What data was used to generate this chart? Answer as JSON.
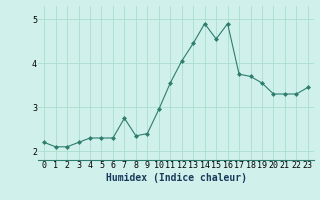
{
  "x": [
    0,
    1,
    2,
    3,
    4,
    5,
    6,
    7,
    8,
    9,
    10,
    11,
    12,
    13,
    14,
    15,
    16,
    17,
    18,
    19,
    20,
    21,
    22,
    23
  ],
  "y": [
    2.2,
    2.1,
    2.1,
    2.2,
    2.3,
    2.3,
    2.3,
    2.75,
    2.35,
    2.4,
    2.95,
    3.55,
    4.05,
    4.45,
    4.9,
    4.55,
    4.9,
    3.75,
    3.7,
    3.55,
    3.3,
    3.3,
    3.3,
    3.45
  ],
  "line_color": "#2e7d6e",
  "marker": "D",
  "marker_size": 2,
  "bg_color": "#cff0eb",
  "grid_color": "#aaddcc",
  "xlabel": "Humidex (Indice chaleur)",
  "xlabel_fontsize": 7,
  "tick_fontsize": 6,
  "xlim": [
    -0.5,
    23.5
  ],
  "ylim": [
    1.8,
    5.3
  ],
  "yticks": [
    2,
    3,
    4,
    5
  ],
  "xticks": [
    0,
    1,
    2,
    3,
    4,
    5,
    6,
    7,
    8,
    9,
    10,
    11,
    12,
    13,
    14,
    15,
    16,
    17,
    18,
    19,
    20,
    21,
    22,
    23
  ]
}
